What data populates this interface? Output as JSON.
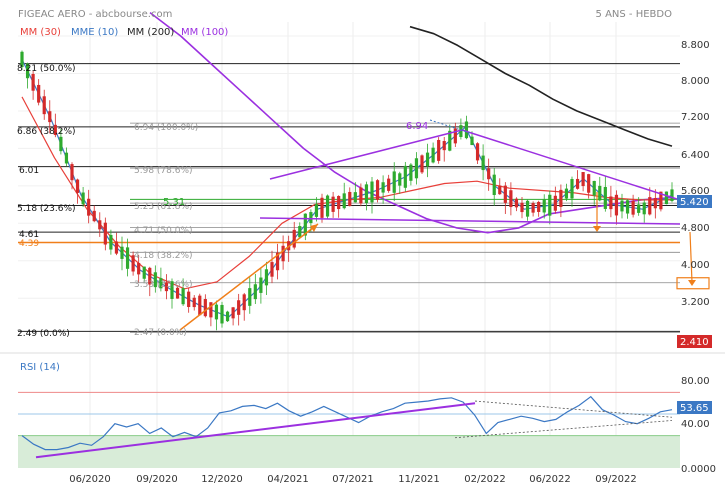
{
  "header": {
    "title": "FIGEAC AERO - abcbourse.com",
    "period": "5 ANS - HEBDO",
    "legend": [
      {
        "label": "MM (30)",
        "color": "#e8403a"
      },
      {
        "label": "MME (10)",
        "color": "#3b78c4"
      },
      {
        "label": "MM (200)",
        "color": "#222222"
      },
      {
        "label": "MM (100)",
        "color": "#9b30e0"
      }
    ]
  },
  "colors": {
    "up_candle": "#2eaa2e",
    "down_candle": "#d42a2a",
    "fib_line": "#888888",
    "support_line": "#9b30e0",
    "trend_arrow": "#f07f1a",
    "price_badge": "#3b78c4",
    "low_badge": "#d42a2a"
  },
  "chart_data": [
    {
      "type": "candlestick",
      "name": "price",
      "ylim": [
        2.2,
        9.1
      ],
      "y_ticks": [
        "8.800",
        "8.000",
        "7.200",
        "6.400",
        "5.600",
        "4.800",
        "4.000",
        "3.200"
      ],
      "x_labels": [
        "06/2020",
        "09/2020",
        "12/2020",
        "04/2021",
        "07/2021",
        "11/2021",
        "02/2022",
        "06/2022",
        "09/2022"
      ],
      "last_price": "5.420",
      "low_price": "2.410",
      "fib_left": [
        {
          "label": "8.21 (50.0%)",
          "value": 8.21
        },
        {
          "label": "6.86 (38.2%)",
          "value": 6.86
        },
        {
          "label": "6.01",
          "value": 6.01
        },
        {
          "label": "5.18 (23.6%)",
          "value": 5.18
        },
        {
          "label": "4.61",
          "value": 4.61
        },
        {
          "label": "4.39",
          "value": 4.39
        },
        {
          "label": "2.49 (0.0%)",
          "value": 2.49
        }
      ],
      "fib_inner": [
        {
          "label": "6.94 (100.0%)",
          "value": 6.94
        },
        {
          "label": "5.98 (78.6%)",
          "value": 5.98
        },
        {
          "label": "5.23 (61.8%)",
          "value": 5.23
        },
        {
          "label": "4.71 (50.0%)",
          "value": 4.71
        },
        {
          "label": "4.18 (38.2%)",
          "value": 4.18
        },
        {
          "label": "3.53 (23.6%)",
          "value": 3.53
        },
        {
          "label": "2.47 (0.0%)",
          "value": 2.47
        }
      ],
      "annotations": [
        {
          "label": "6.94",
          "value": 6.94
        },
        {
          "label": "5.31",
          "value": 5.31
        }
      ],
      "horizontal_lines": [
        8.21,
        6.86,
        6.01,
        5.18,
        4.61,
        4.39,
        2.49
      ],
      "target_box": 3.53,
      "mm200": [
        9.0,
        8.85,
        8.6,
        8.3,
        8.0,
        7.75,
        7.45,
        7.2,
        7.0,
        6.8,
        6.6,
        6.45
      ],
      "mm100": [
        9.3,
        8.8,
        8.2,
        7.6,
        7.0,
        6.4,
        5.9,
        5.5,
        5.2,
        4.9,
        4.7,
        4.6,
        4.7,
        5.0,
        5.1,
        5.2,
        5.3,
        5.35
      ],
      "mm30": [
        7.5,
        6.2,
        5.1,
        4.3,
        3.7,
        3.4,
        3.55,
        4.1,
        4.8,
        5.2,
        5.3,
        5.35,
        5.5,
        5.65,
        5.7,
        5.55,
        5.5,
        5.45,
        5.35,
        5.3,
        5.3
      ],
      "mme10": [
        8.3,
        7.0,
        5.4,
        4.4,
        3.8,
        3.4,
        3.05,
        2.8,
        3.4,
        4.3,
        5.1,
        5.3,
        5.5,
        5.8,
        6.3,
        6.85,
        5.6,
        5.1,
        5.2,
        5.75,
        5.2,
        5.1,
        5.4
      ]
    },
    {
      "type": "line",
      "name": "RSI (14)",
      "ylim": [
        0,
        100
      ],
      "y_ticks": [
        "80.00",
        "40.00",
        "0.0000"
      ],
      "overbought": 70,
      "oversold": 30,
      "last_value": "53.65",
      "values": [
        30,
        22,
        17,
        17,
        19,
        23,
        21,
        29,
        41,
        38,
        41,
        32,
        37,
        29,
        33,
        29,
        37,
        51,
        53,
        57,
        58,
        55,
        60,
        53,
        48,
        52,
        57,
        52,
        47,
        42,
        48,
        52,
        55,
        60,
        61,
        62,
        64,
        65,
        61,
        49,
        32,
        42,
        45,
        48,
        46,
        43,
        45,
        52,
        58,
        66,
        54,
        49,
        43,
        41,
        46,
        52,
        54
      ]
    }
  ]
}
